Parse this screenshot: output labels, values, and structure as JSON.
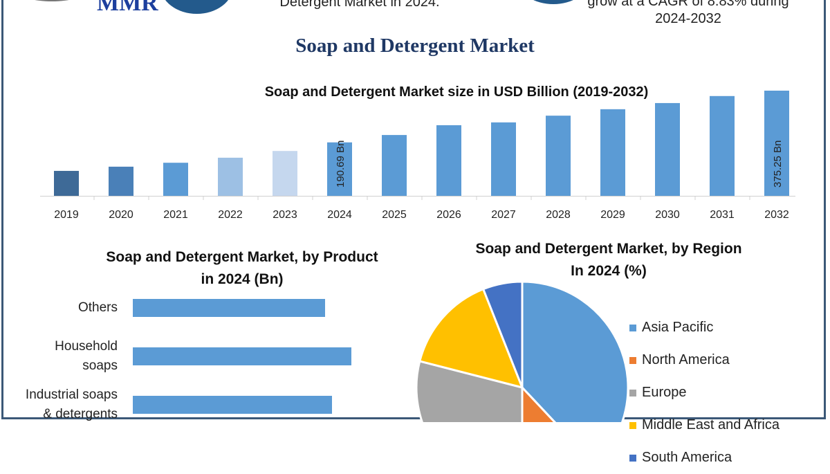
{
  "header": {
    "logo_text": "MMR",
    "left_text": "Detergent Market in 2024.",
    "right_text_line1": "grow at a CAGR of 8.83% during",
    "right_text_line2": "2024-2032"
  },
  "title": "Soap and Detergent Market",
  "chart_data": [
    {
      "type": "bar",
      "title": "Soap and Detergent Market size in USD Billion (2019-2032)",
      "categories": [
        "2019",
        "2020",
        "2021",
        "2022",
        "2023",
        "2024",
        "2025",
        "2026",
        "2027",
        "2028",
        "2029",
        "2030",
        "2031",
        "2032"
      ],
      "values": [
        89,
        104,
        118,
        136,
        160,
        190.69,
        217,
        252,
        262,
        286,
        309,
        331,
        356,
        375.25
      ],
      "data_labels": {
        "2024": "190.69 Bn",
        "2032": "375.25 Bn"
      },
      "colors": [
        "#3e6a97",
        "#4a80b8",
        "#5b9bd5",
        "#9dc0e4",
        "#c5d7ee",
        "#5b9bd5",
        "#5b9bd5",
        "#5b9bd5",
        "#5b9bd5",
        "#5b9bd5",
        "#5b9bd5",
        "#5b9bd5",
        "#5b9bd5",
        "#5b9bd5"
      ],
      "grid": false
    },
    {
      "type": "bar",
      "orientation": "horizontal",
      "title_line1": "Soap and Detergent Market, by Product",
      "title_line2": "in 2024 (Bn)",
      "categories": [
        [
          "Others"
        ],
        [
          "Household",
          "soaps"
        ],
        [
          "Industrial soaps",
          "& detergents"
        ]
      ],
      "values": [
        88,
        100,
        91
      ],
      "color": "#5b9bd5",
      "grid": false
    },
    {
      "type": "pie",
      "title_line1": "Soap and Detergent Market, by Region",
      "title_line2": "In 2024 (%)",
      "labels": [
        "Asia Pacific",
        "North America",
        "Europe",
        "Middle East and Africa",
        "South America"
      ],
      "values": [
        38,
        12,
        29,
        15,
        6
      ],
      "colors": [
        "#5b9bd5",
        "#ed7d31",
        "#a5a5a5",
        "#ffc000",
        "#4472c4"
      ],
      "legend_placement": "right"
    }
  ]
}
